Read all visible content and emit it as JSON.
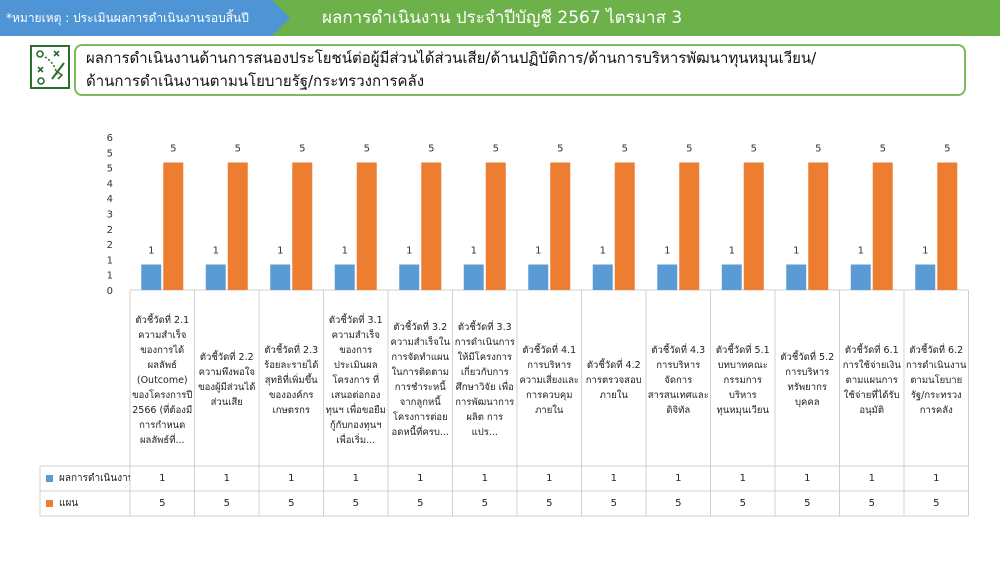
{
  "header": {
    "note": "*หมายเหตุ : ประเมินผลการดำเนินงานรอบสิ้นปี",
    "title": "ผลการดำเนินงาน ประจำปีบัญชี 2567 ไตรมาส 3"
  },
  "section": {
    "line1": "ผลการดำเนินงานด้านการสนองประโยชน์ต่อผู้มีส่วนได้ส่วนเสีย/ด้านปฏิบัติการ/ด้านการบริหารพัฒนาทุนหมุนเวียน/",
    "line2": "ด้านการดำเนินงานตามนโยบายรัฐ/กระทรวงการคลัง",
    "icon": "strategy-board-icon"
  },
  "chart_data": {
    "type": "bar",
    "ylim": [
      0,
      6
    ],
    "yticks": [
      "0",
      "1",
      "1",
      "2",
      "2",
      "3",
      "4",
      "4",
      "5",
      "5",
      "6"
    ],
    "categories": [
      "ตัวชี้วัดที่ 2.1 ความสำเร็จของการได้ผลลัพธ์ (Outcome) ของโครงการปี 2566 (ที่ต้องมีการกำหนดผลลัพธ์ที่...",
      "ตัวชี้วัดที่ 2.2 ความพึงพอใจของผู้มีส่วนได้ส่วนเสีย",
      "ตัวชี้วัดที่ 2.3 ร้อยละรายได้สุทธิที่เพิ่มขึ้นขององค์กรเกษตรกร",
      "ตัวชี้วัดที่ 3.1 ความสำเร็จของการประเมินผลโครงการ ที่เสนอต่อกองทุนฯ เพื่อขอยืมกู้กับกองทุนฯ เพื่อเริ่ม...",
      "ตัวชี้วัดที่ 3.2 ความสำเร็จในการจัดทำแผนในการติดตามการชำระหนี้จากลูกหนี้โครงการต่อยอดหนี้ที่ครบ...",
      "ตัวชี้วัดที่ 3.3 การดำเนินการให้มีโครงการเกี่ยวกับการศึกษาวิจัย เพื่อการพัฒนาการผลิต การแปร...",
      "ตัวชี้วัดที่ 4.1 การบริหารความเสี่ยงและการควบคุมภายใน",
      "ตัวชี้วัดที่ 4.2 การตรวจสอบภายใน",
      "ตัวชี้วัดที่ 4.3 การบริหารจัดการสารสนเทศและดิจิทัล",
      "ตัวชี้วัดที่ 5.1 บทบาทคณะกรรมการบริหารทุนหมุนเวียน",
      "ตัวชี้วัดที่ 5.2 การบริหารทรัพยากรบุคคล",
      "ตัวชี้วัดที่ 6.1 การใช้จ่ายเงินตามแผนการใช้จ่ายที่ได้รับอนุมัติ",
      "ตัวชี้วัดที่ 6.2 การดำเนินงานตามนโยบายรัฐ/กระทรวงการคลัง"
    ],
    "series": [
      {
        "name": "ผลการดำเนินงาน",
        "color": "#5b9bd5",
        "values": [
          1,
          1,
          1,
          1,
          1,
          1,
          1,
          1,
          1,
          1,
          1,
          1,
          1
        ],
        "labels": [
          "1",
          "1",
          "1",
          "1",
          "1",
          "1",
          "1",
          "1",
          "1",
          "1",
          "1",
          "1",
          "1"
        ]
      },
      {
        "name": "แผน",
        "color": "#ed7d31",
        "values": [
          5,
          5,
          5,
          5,
          5,
          5,
          5,
          5,
          5,
          5,
          5,
          5,
          5
        ],
        "labels": [
          "5",
          "5",
          "5",
          "5",
          "5",
          "5",
          "5",
          "5",
          "5",
          "5",
          "5",
          "5",
          "5"
        ]
      }
    ],
    "legend": "table-bottom",
    "grid": false
  }
}
